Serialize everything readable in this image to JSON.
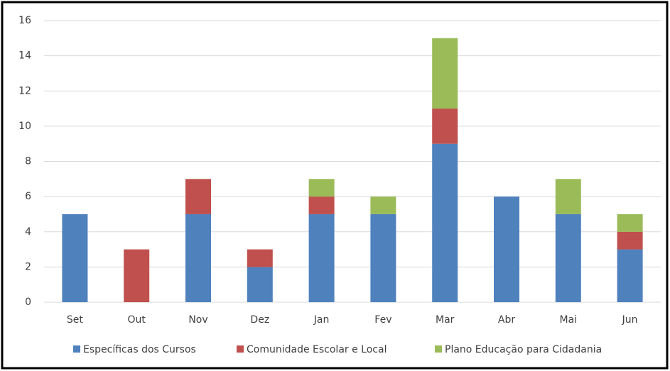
{
  "chart_data": {
    "type": "bar",
    "stacked": true,
    "categories": [
      "Set",
      "Out",
      "Nov",
      "Dez",
      "Jan",
      "Fev",
      "Mar",
      "Abr",
      "Mai",
      "Jun"
    ],
    "series": [
      {
        "name": "Específicas dos Cursos",
        "color": "#4f81bd",
        "values": [
          5,
          0,
          5,
          2,
          5,
          5,
          9,
          6,
          5,
          3
        ]
      },
      {
        "name": "Comunidade Escolar e Local",
        "color": "#c0504d",
        "values": [
          0,
          3,
          2,
          1,
          1,
          0,
          2,
          0,
          0,
          1
        ]
      },
      {
        "name": "Plano Educação para Cidadania",
        "color": "#9bbb59",
        "values": [
          0,
          0,
          0,
          0,
          1,
          1,
          4,
          0,
          2,
          1
        ]
      }
    ],
    "ylim": [
      0,
      16
    ],
    "yticks": [
      0,
      2,
      4,
      6,
      8,
      10,
      12,
      14,
      16
    ],
    "grid": true,
    "legend": "bottom"
  }
}
